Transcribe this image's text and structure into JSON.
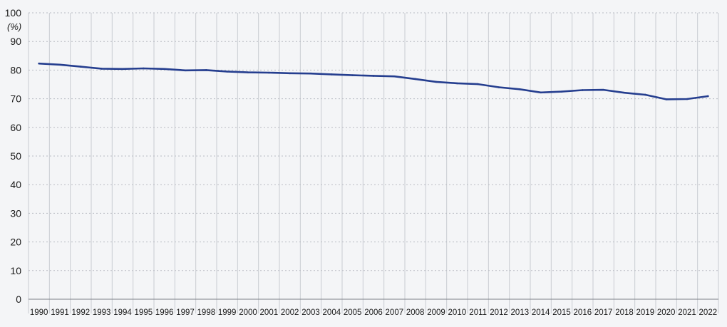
{
  "chart_data": {
    "type": "line",
    "title": "",
    "xlabel": "",
    "ylabel": "(%)",
    "ylim": [
      0,
      100
    ],
    "yticks": [
      "0",
      "10",
      "20",
      "30",
      "40",
      "50",
      "60",
      "70",
      "80",
      "90",
      "100"
    ],
    "grid": true,
    "legend": "none",
    "x": [
      "1990",
      "1991",
      "1992",
      "1993",
      "1994",
      "1995",
      "1996",
      "1997",
      "1998",
      "1999",
      "2000",
      "2001",
      "2002",
      "2003",
      "2004",
      "2005",
      "2006",
      "2007",
      "2008",
      "2009",
      "2010",
      "2011",
      "2012",
      "2013",
      "2014",
      "2015",
      "2016",
      "2017",
      "2018",
      "2019",
      "2020",
      "2021",
      "2022"
    ],
    "series": [
      {
        "color": "#253e8f",
        "values": [
          82.3,
          81.9,
          81.2,
          80.5,
          80.4,
          80.6,
          80.4,
          79.9,
          80.0,
          79.5,
          79.2,
          79.1,
          78.9,
          78.8,
          78.5,
          78.2,
          78.0,
          77.8,
          76.9,
          75.9,
          75.4,
          75.1,
          74.0,
          73.3,
          72.2,
          72.5,
          73.0,
          73.1,
          72.1,
          71.4,
          69.8,
          69.9,
          70.9
        ]
      }
    ]
  }
}
